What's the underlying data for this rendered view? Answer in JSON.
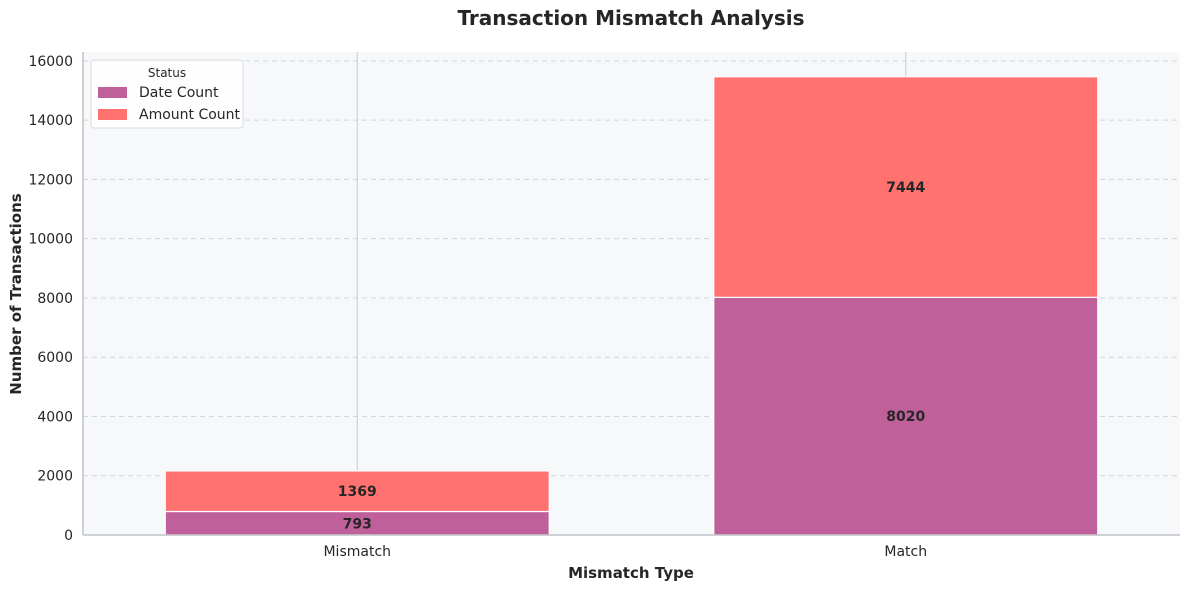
{
  "chart_data": {
    "type": "bar",
    "stacked": true,
    "title": "Transaction Mismatch Analysis",
    "xlabel": "Mismatch Type",
    "ylabel": "Number of Transactions",
    "categories": [
      "Mismatch",
      "Match"
    ],
    "series": [
      {
        "name": "Date Count",
        "values": [
          793,
          8020
        ],
        "color": "#C0609A"
      },
      {
        "name": "Amount Count",
        "values": [
          1369,
          7444
        ],
        "color": "#FF7270"
      }
    ],
    "ylim": [
      0,
      16300
    ],
    "yticks": [
      0,
      2000,
      4000,
      6000,
      8000,
      10000,
      12000,
      14000,
      16000
    ],
    "grid": true,
    "legend": {
      "title": "Status",
      "placement": "top-left"
    },
    "background": "#F7F8FA"
  }
}
